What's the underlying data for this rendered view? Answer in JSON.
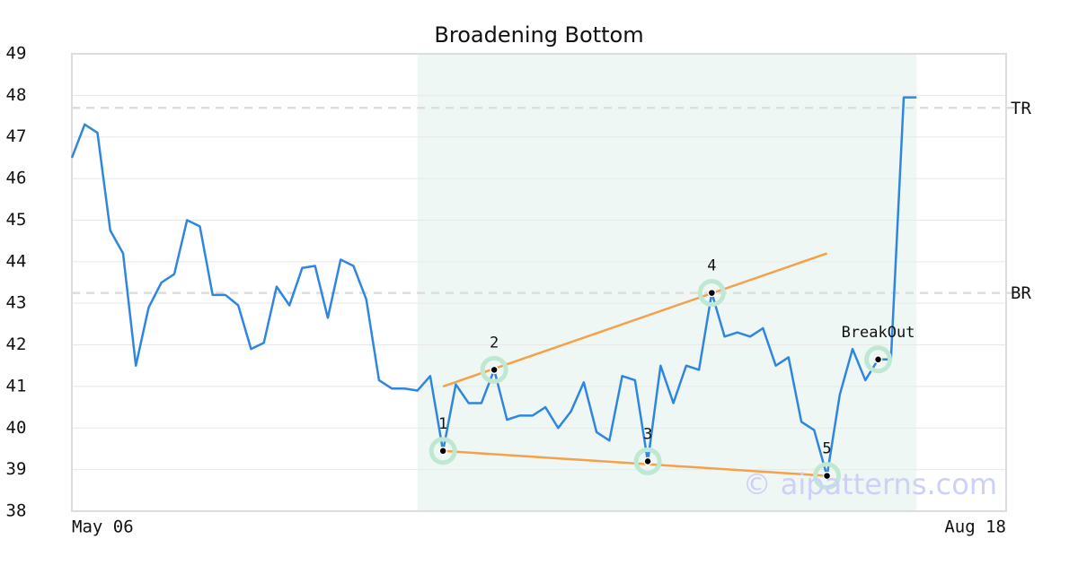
{
  "chart_data": {
    "type": "line",
    "title": "Broadening Bottom",
    "categories": [
      "May 06",
      null,
      null,
      null,
      null,
      null,
      null,
      null,
      null,
      null,
      null,
      null,
      null,
      null,
      null,
      null,
      null,
      null,
      null,
      null,
      null,
      null,
      null,
      null,
      null,
      null,
      null,
      null,
      null,
      null,
      null,
      null,
      null,
      null,
      null,
      null,
      null,
      null,
      null,
      null,
      null,
      null,
      null,
      null,
      null,
      null,
      null,
      null,
      null,
      null,
      null,
      null,
      null,
      null,
      null,
      null,
      null,
      null,
      null,
      null,
      null,
      null,
      null,
      null,
      null,
      null,
      null,
      null,
      null,
      null,
      null,
      null,
      null,
      "Aug 18"
    ],
    "series": [
      {
        "color": "#2f86e0",
        "values": [
          46.5,
          47.3,
          47.1,
          44.75,
          44.2,
          41.5,
          42.9,
          43.5,
          43.7,
          45.0,
          44.85,
          43.2,
          43.2,
          42.95,
          41.9,
          42.05,
          43.4,
          42.95,
          43.85,
          43.9,
          42.65,
          44.05,
          43.9,
          43.1,
          41.15,
          40.95,
          40.95,
          40.9,
          41.25,
          39.45,
          41.05,
          40.6,
          40.6,
          41.4,
          40.2,
          40.3,
          40.3,
          40.5,
          40.0,
          40.4,
          41.1,
          39.9,
          39.7,
          41.25,
          41.15,
          39.2,
          41.5,
          40.6,
          41.5,
          41.4,
          43.25,
          42.2,
          42.3,
          42.2,
          42.4,
          41.5,
          41.7,
          40.15,
          39.95,
          38.85,
          40.8,
          41.9,
          41.15,
          41.65,
          41.65,
          47.95,
          47.95,
          null,
          null,
          null,
          null,
          null,
          null,
          null
        ]
      }
    ],
    "highlight": [
      27,
      66
    ],
    "points": [
      {
        "label": "1",
        "index": 29
      },
      {
        "label": "2",
        "index": 33
      },
      {
        "label": "3",
        "index": 45
      },
      {
        "label": "4",
        "index": 50
      },
      {
        "label": "5",
        "index": 59
      },
      {
        "label": "BreakOut",
        "index": 63
      }
    ],
    "trendlines": [
      {
        "color": "#f5a04a",
        "x": [
          29,
          59
        ],
        "y": [
          41.0,
          44.2
        ]
      },
      {
        "color": "#f5a04a",
        "x": [
          29,
          59
        ],
        "y": [
          39.45,
          38.85
        ]
      }
    ],
    "levels": [
      {
        "label": "TR",
        "value": 47.7
      },
      {
        "label": "BR",
        "value": 43.25
      }
    ],
    "ylim": [
      38,
      49
    ],
    "yticks": [
      38,
      39,
      40,
      41,
      42,
      43,
      44,
      45,
      46,
      47,
      48,
      49
    ],
    "grid": true,
    "watermark": "© aipatterns.com"
  }
}
